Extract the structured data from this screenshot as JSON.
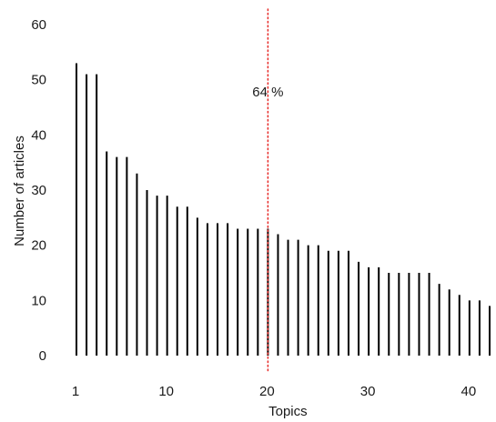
{
  "chart_data": {
    "type": "bar",
    "style": "needle",
    "xlabel": "Topics",
    "ylabel": "Number of articles",
    "xlim": [
      1,
      42
    ],
    "ylim": [
      0,
      60
    ],
    "x_ticks": [
      "1",
      "10",
      "20",
      "30",
      "40"
    ],
    "y_ticks": [
      "0",
      "10",
      "20",
      "30",
      "40",
      "50",
      "60"
    ],
    "x": [
      1,
      2,
      3,
      4,
      5,
      6,
      7,
      8,
      9,
      10,
      11,
      12,
      13,
      14,
      15,
      16,
      17,
      18,
      19,
      20,
      21,
      22,
      23,
      24,
      25,
      26,
      27,
      28,
      29,
      30,
      31,
      32,
      33,
      34,
      35,
      36,
      37,
      38,
      39,
      40,
      41,
      42
    ],
    "values": [
      53,
      51,
      51,
      37,
      36,
      36,
      33,
      30,
      29,
      29,
      27,
      27,
      25,
      24,
      24,
      24,
      23,
      23,
      23,
      23,
      22,
      21,
      21,
      20,
      20,
      19,
      19,
      19,
      17,
      16,
      16,
      15,
      15,
      15,
      15,
      15,
      13,
      12,
      11,
      10,
      10,
      9
    ],
    "bar_color": "#000000",
    "reference_line": {
      "x": 20,
      "label": "64 %",
      "color": "#e8312f",
      "style": "dotted"
    },
    "grid": false,
    "legend": "none"
  }
}
